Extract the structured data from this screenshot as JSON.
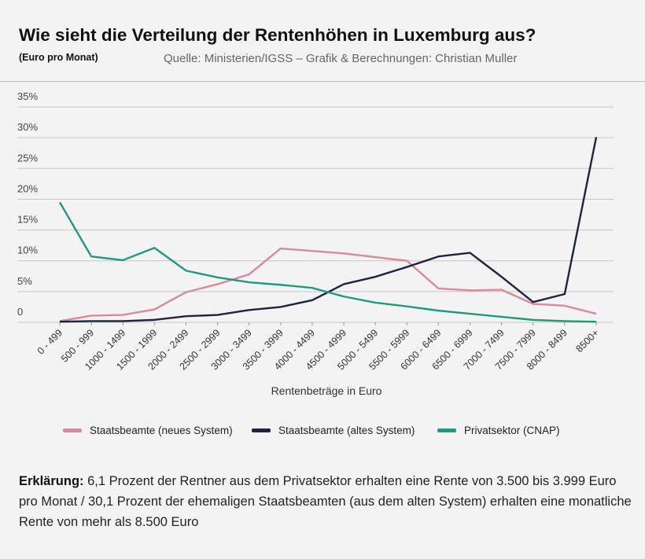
{
  "header": {
    "title": "Wie sieht die Verteilung der Rentenhöhen in Luxemburg aus?",
    "unit": "(Euro pro Monat)",
    "source": "Quelle: Ministerien/IGSS – Grafik & Berechnungen: Christian Muller"
  },
  "chart_data": {
    "type": "line",
    "title": "Wie sieht die Verteilung der Rentenhöhen in Luxemburg aus?",
    "xlabel": "Rentenbeträge in Euro",
    "ylabel": "",
    "ylim": [
      0,
      35
    ],
    "yticks": [
      0,
      5,
      10,
      15,
      20,
      25,
      30,
      35
    ],
    "ytick_labels": [
      "0",
      "5%",
      "10%",
      "15%",
      "20%",
      "25%",
      "30%",
      "35%"
    ],
    "grid": true,
    "legend_position": "bottom",
    "categories": [
      "0 - 499",
      "500 - 999",
      "1000 - 1499",
      "1500 - 1999",
      "2000 - 2499",
      "2500 - 2999",
      "3000 - 3499",
      "3500 - 3999",
      "4000 - 4499",
      "4500 - 4999",
      "5000 - 5499",
      "5500 - 5999",
      "6000 - 6499",
      "6500 - 6999",
      "7000 - 7499",
      "7500 - 7999",
      "8000 - 8499",
      "8500+"
    ],
    "series": [
      {
        "name": "Staatsbeamte (neues System)",
        "color": "#d98a98",
        "values": [
          0.2,
          1.1,
          1.2,
          2.1,
          4.9,
          6.2,
          7.8,
          12.0,
          11.6,
          11.2,
          10.6,
          10.0,
          5.5,
          5.2,
          5.3,
          3.0,
          2.7,
          1.4
        ]
      },
      {
        "name": "Staatsbeamte (altes System)",
        "color": "#1c2440",
        "values": [
          0.1,
          0.2,
          0.2,
          0.4,
          1.0,
          1.2,
          2.0,
          2.5,
          3.6,
          6.2,
          7.4,
          9.0,
          10.7,
          11.3,
          7.4,
          3.3,
          4.6,
          30.1
        ]
      },
      {
        "name": "Privatsektor (CNAP)",
        "color": "#1e9a80",
        "values": [
          19.5,
          10.7,
          10.1,
          12.1,
          8.4,
          7.3,
          6.5,
          6.1,
          5.6,
          4.2,
          3.2,
          2.6,
          1.9,
          1.4,
          0.9,
          0.4,
          0.2,
          0.1
        ]
      }
    ]
  },
  "explanation": {
    "label": "Erklärung:",
    "text": " 6,1 Prozent der Rentner aus dem Privatsektor erhalten eine Rente von 3.500 bis 3.999 Euro pro Monat / 30,1 Prozent der ehemaligen Staatsbeamten (aus dem alten System) erhalten eine monatliche Rente von mehr als 8.500 Euro"
  }
}
